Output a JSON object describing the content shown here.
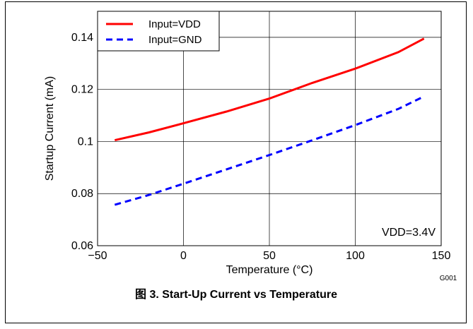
{
  "chart_data": {
    "type": "line",
    "title": "",
    "xlabel": "Temperature (°C)",
    "ylabel": "Startup Current (mA)",
    "xlim": [
      -50,
      150
    ],
    "ylim": [
      0.06,
      0.15
    ],
    "x_ticks": [
      "−50",
      "0",
      "50",
      "100",
      "150"
    ],
    "y_ticks": [
      "0.06",
      "0.08",
      "0.1",
      "0.12",
      "0.14"
    ],
    "grid": true,
    "legend_position": "top-left",
    "series": [
      {
        "name": "Input=VDD",
        "color": "#ff0000",
        "style": "solid",
        "x": [
          -40,
          -20,
          0,
          25,
          50,
          75,
          100,
          125,
          140
        ],
        "y": [
          0.1005,
          0.1035,
          0.107,
          0.1115,
          0.1165,
          0.1225,
          0.128,
          0.1343,
          0.1395
        ]
      },
      {
        "name": "Input=GND",
        "color": "#0000ff",
        "style": "dashed",
        "x": [
          -40,
          -20,
          0,
          25,
          50,
          75,
          100,
          125,
          140
        ],
        "y": [
          0.0757,
          0.0795,
          0.0838,
          0.0893,
          0.0948,
          0.1005,
          0.1063,
          0.1125,
          0.1173
        ]
      }
    ],
    "annotation": "VDD=3.4V",
    "figure_id": "G001",
    "caption": "图 3. Start-Up Current vs Temperature"
  }
}
